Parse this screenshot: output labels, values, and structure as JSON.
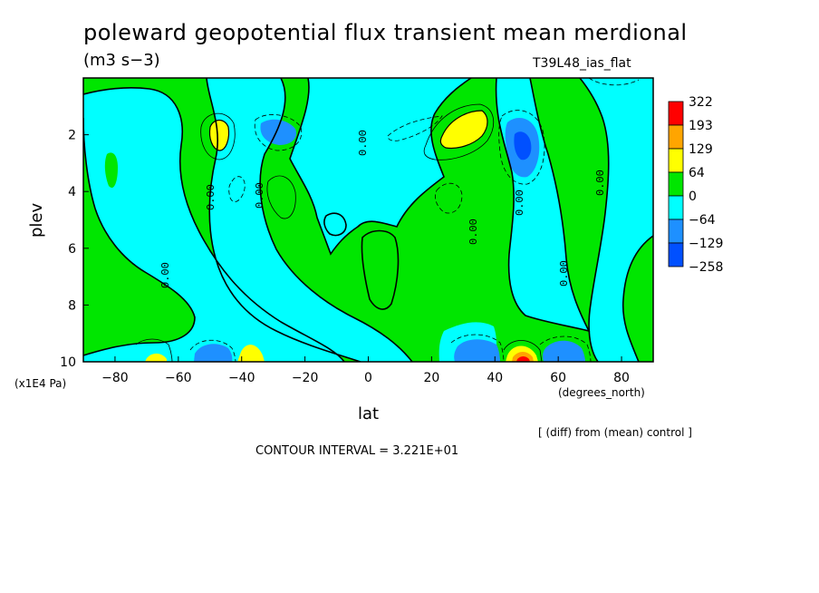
{
  "chart_data": {
    "type": "contour",
    "title": "poleward geopotential flux transient mean merdional",
    "units": "(m3 s−3)",
    "dataset_label": "T39L48_ias_flat",
    "xlabel": "lat",
    "x_units": "(degrees_north)",
    "ylabel": "plev",
    "y_units": "(x1E4 Pa)",
    "x_ticks": [
      "−80",
      "−60",
      "−40",
      "−20",
      "0",
      "20",
      "40",
      "60",
      "80"
    ],
    "y_ticks": [
      "2",
      "4",
      "6",
      "8",
      "10"
    ],
    "xlim": [
      -90,
      90
    ],
    "ylim": [
      10,
      0
    ],
    "contour_interval_text": "CONTOUR INTERVAL = 3.221E+01",
    "comparison_note": "[ (diff) from (mean) control ]",
    "zero_contour_label": "0.00",
    "colorbar": {
      "levels": [
        "322",
        "193",
        "129",
        "64",
        "0",
        "−64",
        "−129",
        "−258"
      ],
      "colors": [
        "#ff0000",
        "#ffa500",
        "#ffff00",
        "#00e600",
        "#00ffff",
        "#1e90ff",
        "#0050ff"
      ]
    },
    "fill_colors": {
      "background": "#00e600",
      "negative": "#00ffff",
      "strong_negative": "#1e90ff",
      "very_negative": "#0050ff",
      "positive": "#ffff00",
      "strong_positive": "#ffa500",
      "max": "#ff0000"
    }
  }
}
